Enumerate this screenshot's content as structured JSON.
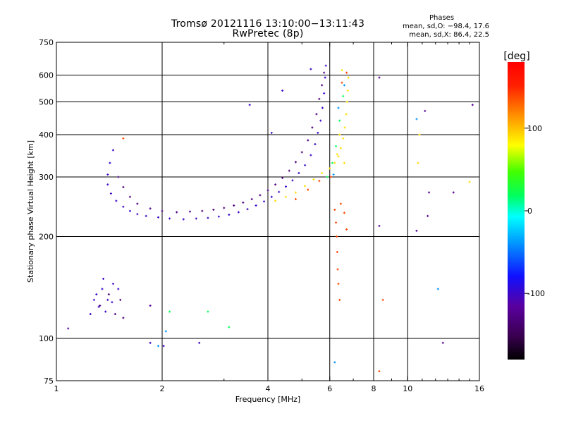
{
  "chart_data": {
    "type": "scatter",
    "title_line1": "Tromsø 20121116 13:10:00−13:11:43",
    "title_line2": "RwPretec (8p)",
    "xlabel": "Frequency [MHz]",
    "ylabel": "Stationary phase Virtual Height [km]",
    "x_scale": "log",
    "y_scale": "log",
    "xlim": [
      1,
      16
    ],
    "ylim": [
      75,
      750
    ],
    "x_ticks": [
      1,
      2,
      4,
      6,
      8,
      10,
      16
    ],
    "y_ticks": [
      75,
      100,
      200,
      300,
      400,
      500,
      600,
      750
    ],
    "x_grid": [
      2,
      4,
      6,
      8,
      10
    ],
    "y_grid": [
      100,
      200,
      300,
      400,
      500,
      600
    ],
    "stats": {
      "heading": "Phases",
      "line_o": "mean, sd,O: −98.4, 17.6",
      "line_x": "mean, sd,X:  86.4, 22.5"
    },
    "colorbar": {
      "label": "[deg]",
      "range": [
        -180,
        180
      ],
      "ticks": [
        -100,
        0,
        100
      ],
      "colormap": "rainbow"
    },
    "series": [
      {
        "phase_deg": -100,
        "points": [
          [
            1.45,
            360
          ],
          [
            1.42,
            330
          ],
          [
            1.4,
            305
          ],
          [
            1.4,
            285
          ],
          [
            1.43,
            268
          ],
          [
            1.48,
            255
          ],
          [
            1.55,
            245
          ],
          [
            1.62,
            238
          ],
          [
            1.7,
            233
          ],
          [
            1.8,
            230
          ],
          [
            1.95,
            228
          ],
          [
            2.1,
            226
          ],
          [
            2.3,
            225
          ],
          [
            2.5,
            226
          ],
          [
            2.7,
            227
          ],
          [
            2.9,
            229
          ],
          [
            3.1,
            232
          ],
          [
            3.3,
            236
          ],
          [
            3.5,
            241
          ],
          [
            3.7,
            247
          ],
          [
            3.9,
            254
          ],
          [
            4.1,
            262
          ],
          [
            4.3,
            271
          ],
          [
            4.5,
            281
          ],
          [
            4.7,
            293
          ],
          [
            4.9,
            308
          ],
          [
            5.1,
            325
          ],
          [
            5.3,
            348
          ],
          [
            5.45,
            375
          ],
          [
            5.55,
            405
          ],
          [
            5.65,
            440
          ],
          [
            5.72,
            480
          ],
          [
            5.78,
            530
          ],
          [
            5.82,
            590
          ],
          [
            5.85,
            640
          ],
          [
            1.3,
            135
          ],
          [
            1.35,
            140
          ],
          [
            1.4,
            130
          ],
          [
            1.45,
            145
          ],
          [
            1.32,
            124
          ],
          [
            1.38,
            120
          ],
          [
            1.44,
            128
          ],
          [
            1.25,
            118
          ],
          [
            1.5,
            140
          ],
          [
            1.36,
            150
          ],
          [
            1.28,
            130
          ],
          [
            1.85,
            97
          ],
          [
            2.02,
            95
          ],
          [
            2.55,
            97
          ],
          [
            3.55,
            490
          ],
          [
            4.4,
            540
          ],
          [
            5.3,
            625
          ],
          [
            4.1,
            405
          ]
        ]
      },
      {
        "phase_deg": -130,
        "points": [
          [
            1.5,
            300
          ],
          [
            1.55,
            280
          ],
          [
            1.62,
            262
          ],
          [
            1.7,
            250
          ],
          [
            1.85,
            242
          ],
          [
            2.0,
            238
          ],
          [
            2.2,
            236
          ],
          [
            2.4,
            237
          ],
          [
            2.6,
            238
          ],
          [
            2.8,
            240
          ],
          [
            3.0,
            243
          ],
          [
            3.2,
            247
          ],
          [
            3.4,
            252
          ],
          [
            3.6,
            258
          ],
          [
            3.8,
            265
          ],
          [
            4.0,
            274
          ],
          [
            4.2,
            285
          ],
          [
            4.4,
            298
          ],
          [
            4.6,
            313
          ],
          [
            4.8,
            332
          ],
          [
            5.0,
            355
          ],
          [
            5.2,
            385
          ],
          [
            5.35,
            420
          ],
          [
            5.5,
            460
          ],
          [
            5.6,
            510
          ],
          [
            5.7,
            560
          ],
          [
            5.78,
            610
          ],
          [
            1.33,
            125
          ],
          [
            1.41,
            135
          ],
          [
            1.47,
            118
          ],
          [
            1.55,
            115
          ],
          [
            1.52,
            130
          ]
        ]
      },
      {
        "phase_deg": 90,
        "points": [
          [
            4.2,
            255
          ],
          [
            4.5,
            262
          ],
          [
            4.8,
            270
          ],
          [
            5.1,
            282
          ],
          [
            5.4,
            295
          ],
          [
            5.7,
            308
          ],
          [
            6.0,
            318
          ],
          [
            6.2,
            330
          ],
          [
            6.35,
            345
          ],
          [
            6.45,
            365
          ],
          [
            6.55,
            390
          ],
          [
            6.62,
            420
          ],
          [
            6.68,
            460
          ],
          [
            6.72,
            500
          ],
          [
            6.75,
            540
          ],
          [
            6.78,
            590
          ],
          [
            6.5,
            620
          ],
          [
            6.4,
            400
          ],
          [
            6.3,
            350
          ],
          [
            6.6,
            330
          ],
          [
            10.8,
            400
          ],
          [
            10.7,
            330
          ],
          [
            15.0,
            290
          ]
        ]
      },
      {
        "phase_deg": 140,
        "points": [
          [
            6.2,
            240
          ],
          [
            6.25,
            220
          ],
          [
            6.28,
            200
          ],
          [
            6.3,
            180
          ],
          [
            6.32,
            160
          ],
          [
            6.35,
            145
          ],
          [
            6.4,
            130
          ],
          [
            6.45,
            250
          ],
          [
            6.6,
            235
          ],
          [
            6.7,
            210
          ],
          [
            4.8,
            258
          ],
          [
            5.2,
            275
          ],
          [
            5.6,
            292
          ],
          [
            6.05,
            300
          ],
          [
            6.5,
            570
          ],
          [
            6.7,
            610
          ],
          [
            8.3,
            80
          ],
          [
            8.5,
            130
          ],
          [
            1.55,
            390
          ]
        ]
      },
      {
        "phase_deg": 20,
        "points": [
          [
            5.9,
            300
          ],
          [
            6.1,
            330
          ],
          [
            6.25,
            370
          ],
          [
            6.4,
            440
          ],
          [
            6.55,
            520
          ],
          [
            2.1,
            120
          ],
          [
            2.7,
            120
          ],
          [
            3.1,
            108
          ]
        ]
      },
      {
        "phase_deg": -40,
        "points": [
          [
            6.15,
            305
          ],
          [
            6.35,
            480
          ],
          [
            6.6,
            560
          ],
          [
            2.05,
            105
          ],
          [
            1.95,
            95
          ],
          [
            10.6,
            445
          ],
          [
            12.2,
            140
          ],
          [
            6.2,
            85
          ]
        ]
      },
      {
        "phase_deg": -120,
        "points": [
          [
            8.3,
            590
          ],
          [
            8.3,
            215
          ],
          [
            11.2,
            470
          ],
          [
            11.5,
            270
          ],
          [
            11.4,
            230
          ],
          [
            10.6,
            208
          ],
          [
            13.5,
            270
          ],
          [
            15.3,
            490
          ],
          [
            12.6,
            97
          ],
          [
            1.08,
            107
          ],
          [
            1.85,
            125
          ]
        ]
      }
    ]
  }
}
